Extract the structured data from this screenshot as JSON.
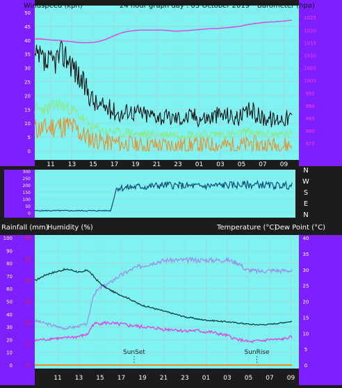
{
  "chart_data": [
    {
      "type": "line",
      "header": {
        "left": "Windspeed (kph)",
        "center": "24 hour graph day : 03 October 2019",
        "right": "Barometer (hpa)"
      },
      "x_ticks": [
        "11",
        "13",
        "15",
        "17",
        "19",
        "21",
        "23",
        "01",
        "03",
        "05",
        "07",
        "09"
      ],
      "y_left": {
        "ticks": [
          0,
          5,
          10,
          15,
          20,
          25,
          30,
          35,
          40,
          45,
          50
        ],
        "ylim": [
          0,
          50
        ]
      },
      "y_right": {
        "ticks": [
          975,
          980,
          985,
          990,
          995,
          1000,
          1005,
          1010,
          1015,
          1020,
          1025
        ],
        "ylim": [
          972,
          1027
        ]
      },
      "series": [
        {
          "role": "gust",
          "color": "#000000",
          "values": [
            33,
            33,
            31,
            32,
            34,
            35,
            33,
            29,
            25,
            22,
            18,
            16,
            16,
            15,
            14,
            13,
            15,
            14,
            14,
            13,
            13,
            13,
            12,
            12,
            12,
            12,
            12,
            13,
            12,
            12,
            12,
            13,
            13,
            13,
            12,
            12,
            13,
            15,
            13,
            12,
            12,
            11,
            12,
            12,
            12
          ]
        },
        {
          "role": "average",
          "color": "#8ee87a",
          "values": [
            15,
            15,
            15,
            16,
            17,
            16,
            15,
            14,
            12,
            10,
            8,
            8,
            7,
            7,
            7,
            6,
            7,
            6,
            6,
            6,
            6,
            6,
            6,
            6,
            6,
            6,
            6,
            6,
            6,
            6,
            6,
            6,
            6,
            6,
            6,
            6,
            7,
            7,
            6,
            6,
            6,
            6,
            6,
            6,
            6
          ]
        },
        {
          "role": "low",
          "color": "#f08a1a",
          "values": [
            8,
            8,
            8,
            9,
            9,
            9,
            9,
            8,
            6,
            5,
            4,
            4,
            3,
            3,
            3,
            2,
            3,
            2,
            2,
            2,
            2,
            2,
            2,
            2,
            2,
            2,
            2,
            2,
            2,
            2,
            2,
            2,
            2,
            2,
            2,
            2,
            2,
            3,
            2,
            2,
            2,
            2,
            2,
            2,
            2
          ]
        },
        {
          "role": "barometer",
          "color": "#e040e0",
          "axis": "right",
          "values": [
            1016.5,
            1016.5,
            1016.3,
            1016.0,
            1016.0,
            1015.6,
            1015.5,
            1015.2,
            1015.0,
            1015.0,
            1015.1,
            1015.5,
            1016.2,
            1017.2,
            1018.2,
            1019.0,
            1019.5,
            1019.8,
            1020.0,
            1020.0,
            1020.0,
            1020.0,
            1020.0,
            1019.8,
            1019.6,
            1019.7,
            1019.8,
            1020.0,
            1020.2,
            1020.4,
            1020.6,
            1020.6,
            1020.8,
            1021.0,
            1021.2,
            1021.5,
            1022.0,
            1022.4,
            1022.7,
            1023.0,
            1023.2,
            1023.3,
            1023.5,
            1023.7,
            1024.0
          ]
        }
      ]
    },
    {
      "type": "line",
      "y_ticks": [
        0,
        50,
        100,
        150,
        200,
        250,
        300
      ],
      "ylim": [
        0,
        300
      ],
      "compass": [
        "N",
        "W",
        "S",
        "E",
        "N"
      ],
      "series": [
        {
          "role": "direction",
          "color": "#0b4b78",
          "values": [
            15,
            15,
            15,
            15,
            15,
            15,
            15,
            15,
            15,
            15,
            15,
            15,
            15,
            15,
            180,
            178,
            182,
            185,
            190,
            186,
            192,
            195,
            198,
            200,
            196,
            195,
            192,
            193,
            190,
            191,
            194,
            196,
            198,
            199,
            198,
            200,
            202,
            200,
            203,
            201,
            197,
            195,
            198,
            196,
            192
          ]
        }
      ]
    },
    {
      "type": "line",
      "header": {
        "left": "Rainfall (mm)",
        "left2": "Humidity (%)",
        "right": "Temperature (°C)",
        "right2": "Dew Point (°C)"
      },
      "x_ticks": [
        "11",
        "13",
        "15",
        "17",
        "19",
        "21",
        "23",
        "01",
        "03",
        "05",
        "07",
        "09"
      ],
      "y_left": {
        "ticks": [
          0,
          10,
          20,
          30,
          40,
          50,
          60,
          70,
          80,
          90,
          100
        ],
        "ylim": [
          0,
          100
        ]
      },
      "y_rain": {
        "ticks": [
          0,
          5,
          10,
          15,
          20,
          25,
          30
        ],
        "ylim": [
          0,
          30
        ]
      },
      "y_right": {
        "ticks": [
          0,
          5,
          10,
          15,
          20,
          25,
          30,
          35,
          40
        ],
        "ylim": [
          0,
          40
        ]
      },
      "annotations": [
        {
          "label": "SunSet",
          "x_index": 17
        },
        {
          "label": "SunRise",
          "x_index": 38
        }
      ],
      "series": [
        {
          "role": "temperature",
          "color": "#0d3b3a",
          "axis": "right",
          "values": [
            26.5,
            27.5,
            28.5,
            29.0,
            29.5,
            30.0,
            30.0,
            29.5,
            29.0,
            30.0,
            28.0,
            26.0,
            24.5,
            23.5,
            22.5,
            21.8,
            21.0,
            20.0,
            19.0,
            18.5,
            18.0,
            17.5,
            17.0,
            16.5,
            16.0,
            15.5,
            15.0,
            14.8,
            14.4,
            14.2,
            14.0,
            13.9,
            13.7,
            13.6,
            13.4,
            13.2,
            13.0,
            12.8,
            12.7,
            12.7,
            12.8,
            13.0,
            13.2,
            13.5,
            13.7
          ]
        },
        {
          "role": "dew_point",
          "color": "#9a8ee8",
          "axis": "right",
          "values": [
            14.0,
            13.5,
            13.0,
            12.5,
            12.0,
            11.5,
            11.8,
            12.0,
            12.5,
            13.0,
            22.0,
            24.0,
            25.0,
            26.0,
            27.5,
            28.5,
            29.5,
            30.5,
            31.0,
            31.5,
            32.0,
            32.5,
            32.8,
            33.0,
            33.0,
            33.0,
            33.0,
            33.0,
            33.0,
            33.0,
            33.0,
            33.0,
            33.0,
            33.0,
            32.5,
            32.0,
            30.0,
            29.8,
            29.5,
            29.5,
            29.7,
            29.8,
            29.6,
            29.8,
            29.5
          ]
        },
        {
          "role": "humidity",
          "color": "#e040e0",
          "axis": "left",
          "values": [
            19,
            20,
            20,
            21,
            21,
            21,
            22,
            22,
            23,
            24,
            32,
            33,
            33,
            33,
            32,
            32,
            31,
            31,
            30,
            30,
            29,
            29,
            28,
            28,
            28,
            27,
            27,
            27,
            27,
            26,
            26,
            25,
            24,
            23,
            21,
            20,
            19,
            18,
            19,
            19,
            20,
            20,
            20,
            21,
            22
          ]
        },
        {
          "role": "rainfall",
          "color": "#f08a1a",
          "axis": "rain",
          "values": [
            0,
            0,
            0,
            0,
            0,
            0,
            0,
            0,
            0,
            0,
            0,
            0,
            0,
            0,
            0,
            0,
            0,
            0,
            0,
            0,
            0,
            0,
            0,
            0,
            0,
            0,
            0,
            0,
            0,
            0,
            0,
            0,
            0,
            0,
            0,
            0,
            0,
            0,
            0,
            0,
            0,
            0,
            0,
            0,
            0
          ]
        }
      ]
    }
  ]
}
